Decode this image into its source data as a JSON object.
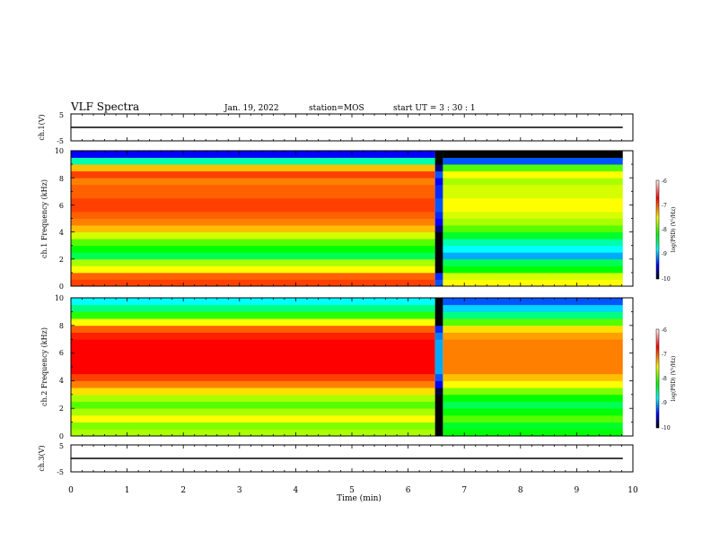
{
  "header": {
    "title": "VLF Spectra",
    "date": "Jan. 19, 2022",
    "station": "station=MOS",
    "start": "start UT =  3 : 30 : 1"
  },
  "colorbar": {
    "label": "log(PSD) (V²/Hz)",
    "ticks": [
      "-6",
      "-7",
      "-8",
      "-9",
      "-10"
    ],
    "colors": [
      "#ffffff",
      "#ff0000",
      "#ffff00",
      "#00ff00",
      "#00ffff",
      "#0000ff",
      "#000000"
    ]
  },
  "chart_data": [
    {
      "type": "line",
      "name": "ch.1 waveform",
      "ylabel": "ch.1(V)",
      "ylim": [
        -5,
        5
      ],
      "yticks": [
        "5",
        "-5"
      ],
      "xlim": [
        0,
        10
      ],
      "level": 0,
      "dropout_min": [
        6.48,
        6.62
      ]
    },
    {
      "type": "heatmap",
      "name": "ch.1 spectrogram",
      "ylabel": "ch.1 Frequency (kHz)",
      "ylim": [
        0,
        10
      ],
      "yticks": [
        "0",
        "2",
        "4",
        "6",
        "8",
        "10"
      ],
      "xlim": [
        0,
        10
      ],
      "crange": [
        -10,
        -6
      ],
      "freq_khz": [
        0.25,
        0.75,
        1.25,
        1.75,
        2.25,
        2.75,
        3.25,
        3.75,
        4.25,
        4.75,
        5.25,
        5.75,
        6.25,
        6.75,
        7.25,
        7.75,
        8.25,
        8.75,
        9.25,
        9.75
      ],
      "log_psd_by_freq": [
        -7.2,
        -7.3,
        -7.8,
        -8.0,
        -8.6,
        -8.4,
        -8.2,
        -7.9,
        -7.6,
        -7.4,
        -7.3,
        -7.2,
        -7.2,
        -7.3,
        -7.3,
        -7.4,
        -7.2,
        -7.6,
        -8.8,
        -9.6
      ],
      "time_segments": [
        {
          "t": [
            0.0,
            6.48
          ],
          "offset": 0.0
        },
        {
          "t": [
            6.48,
            6.62
          ],
          "offset": -2.2
        },
        {
          "t": [
            6.62,
            9.82
          ],
          "offset": -0.6
        },
        {
          "t": [
            9.82,
            10.0
          ],
          "offset": null
        }
      ]
    },
    {
      "type": "heatmap",
      "name": "ch.2 spectrogram",
      "ylabel": "ch.2 Frequency (kHz)",
      "ylim": [
        0,
        10
      ],
      "yticks": [
        "0",
        "2",
        "4",
        "6",
        "8",
        "10"
      ],
      "xlim": [
        0,
        10
      ],
      "crange": [
        -10,
        -6
      ],
      "freq_khz": [
        0.25,
        0.75,
        1.25,
        1.75,
        2.25,
        2.75,
        3.25,
        3.75,
        4.25,
        4.75,
        5.25,
        5.75,
        6.25,
        6.75,
        7.25,
        7.75,
        8.25,
        8.75,
        9.25,
        9.75
      ],
      "log_psd_by_freq": [
        -8.0,
        -8.1,
        -7.8,
        -8.0,
        -8.2,
        -8.0,
        -7.7,
        -7.4,
        -7.2,
        -7.0,
        -7.0,
        -7.0,
        -7.0,
        -7.0,
        -7.1,
        -7.3,
        -7.8,
        -8.3,
        -8.7,
        -9.0
      ],
      "time_segments": [
        {
          "t": [
            0.0,
            6.48
          ],
          "offset": 0.0
        },
        {
          "t": [
            6.48,
            6.62
          ],
          "offset": -2.2
        },
        {
          "t": [
            6.62,
            9.82
          ],
          "offset": -0.4
        },
        {
          "t": [
            9.82,
            10.0
          ],
          "offset": null
        }
      ]
    },
    {
      "type": "line",
      "name": "ch.3 waveform",
      "ylabel": "ch.3(V)",
      "ylim": [
        -5,
        5
      ],
      "yticks": [
        "5",
        "-5"
      ],
      "xlim": [
        0,
        10
      ],
      "level": 0,
      "dropout_min": [
        6.48,
        6.62
      ]
    }
  ],
  "xaxis": {
    "label": "Time (min)",
    "ticks": [
      "0",
      "1",
      "2",
      "3",
      "4",
      "5",
      "6",
      "7",
      "8",
      "9",
      "10"
    ]
  }
}
